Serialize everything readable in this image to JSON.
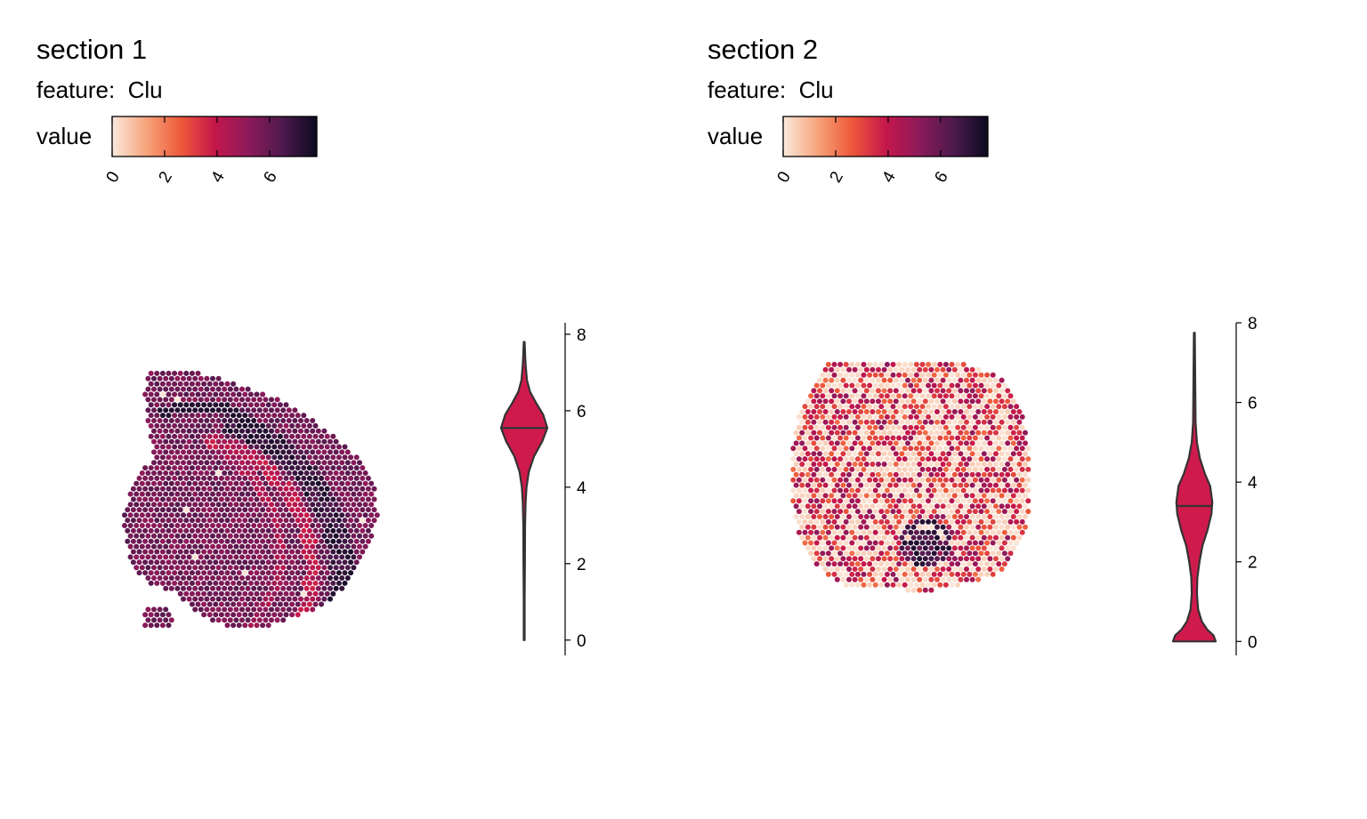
{
  "colors": {
    "scale": [
      "#fbe9dc",
      "#f6a47c",
      "#ee5a3a",
      "#c5174b",
      "#8c1a5a",
      "#4d1a4d",
      "#0b0a1f"
    ],
    "violin_fill": "#cf1a4c",
    "outline": "#333333"
  },
  "chart_data": [
    {
      "type": "scatter",
      "title": "section 1",
      "feature_label": "feature:",
      "feature": "Clu",
      "legend_title": "value",
      "legend_ticks": [
        "0",
        "2",
        "4",
        "6"
      ],
      "value_range": [
        0,
        7.8
      ],
      "violin": {
        "y_ticks": [
          "0",
          "2",
          "4",
          "6",
          "8"
        ],
        "ylim": [
          -0.4,
          8.3
        ],
        "min": 0,
        "max": 7.8,
        "median": 5.55,
        "density": [
          [
            0.0,
            0.02
          ],
          [
            1.0,
            0.02
          ],
          [
            2.0,
            0.03
          ],
          [
            3.0,
            0.04
          ],
          [
            3.6,
            0.06
          ],
          [
            4.0,
            0.1
          ],
          [
            4.4,
            0.2
          ],
          [
            4.8,
            0.42
          ],
          [
            5.2,
            0.78
          ],
          [
            5.55,
            1.0
          ],
          [
            5.9,
            0.82
          ],
          [
            6.2,
            0.52
          ],
          [
            6.5,
            0.25
          ],
          [
            6.8,
            0.12
          ],
          [
            7.2,
            0.06
          ],
          [
            7.5,
            0.04
          ],
          [
            7.8,
            0.02
          ]
        ]
      }
    },
    {
      "type": "scatter",
      "title": "section 2",
      "feature_label": "feature:",
      "feature": "Clu",
      "legend_title": "value",
      "legend_ticks": [
        "0",
        "2",
        "4",
        "6"
      ],
      "value_range": [
        0,
        7.8
      ],
      "violin": {
        "y_ticks": [
          "0",
          "2",
          "4",
          "6",
          "8"
        ],
        "ylim": [
          -0.35,
          8.0
        ],
        "min": 0,
        "max": 7.75,
        "median": 3.4,
        "density": [
          [
            0.0,
            1.0
          ],
          [
            0.15,
            0.9
          ],
          [
            0.3,
            0.6
          ],
          [
            0.5,
            0.35
          ],
          [
            0.8,
            0.18
          ],
          [
            1.2,
            0.12
          ],
          [
            1.6,
            0.14
          ],
          [
            2.0,
            0.24
          ],
          [
            2.4,
            0.38
          ],
          [
            2.8,
            0.62
          ],
          [
            3.2,
            0.8
          ],
          [
            3.5,
            0.84
          ],
          [
            3.9,
            0.74
          ],
          [
            4.2,
            0.5
          ],
          [
            4.6,
            0.26
          ],
          [
            5.0,
            0.12
          ],
          [
            5.5,
            0.06
          ],
          [
            6.5,
            0.04
          ],
          [
            7.75,
            0.02
          ]
        ]
      }
    }
  ]
}
